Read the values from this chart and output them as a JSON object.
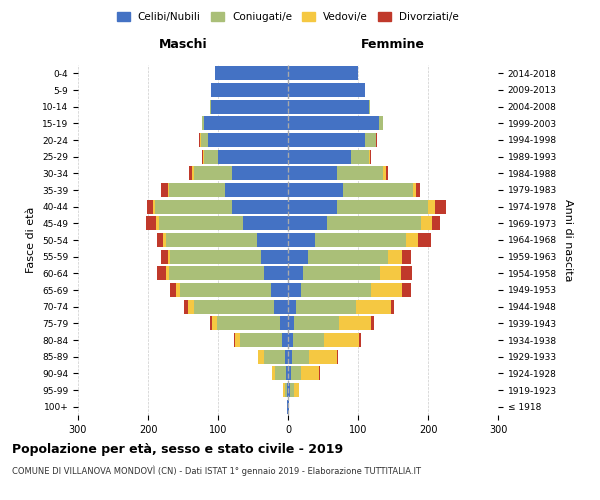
{
  "age_groups": [
    "100+",
    "95-99",
    "90-94",
    "85-89",
    "80-84",
    "75-79",
    "70-74",
    "65-69",
    "60-64",
    "55-59",
    "50-54",
    "45-49",
    "40-44",
    "35-39",
    "30-34",
    "25-29",
    "20-24",
    "15-19",
    "10-14",
    "5-9",
    "0-4"
  ],
  "birth_years": [
    "≤ 1918",
    "1919-1923",
    "1924-1928",
    "1929-1933",
    "1934-1938",
    "1939-1943",
    "1944-1948",
    "1949-1953",
    "1954-1958",
    "1959-1963",
    "1964-1968",
    "1969-1973",
    "1974-1978",
    "1979-1983",
    "1984-1988",
    "1989-1993",
    "1994-1998",
    "1999-2003",
    "2004-2008",
    "2009-2013",
    "2014-2018"
  ],
  "colors": {
    "celibi_nubili": "#4472C4",
    "coniugati": "#AABF78",
    "vedovi": "#F5C842",
    "divorziati": "#C0392B"
  },
  "male_celibi": [
    1,
    2,
    3,
    5,
    8,
    12,
    20,
    25,
    35,
    38,
    45,
    65,
    80,
    90,
    80,
    100,
    115,
    120,
    110,
    110,
    105
  ],
  "male_coniugati": [
    0,
    3,
    15,
    30,
    60,
    90,
    115,
    130,
    135,
    130,
    130,
    120,
    110,
    80,
    55,
    20,
    10,
    3,
    2,
    0,
    0
  ],
  "male_vedovi": [
    0,
    2,
    5,
    8,
    8,
    7,
    8,
    5,
    5,
    4,
    4,
    3,
    3,
    2,
    2,
    1,
    1,
    0,
    0,
    0,
    0
  ],
  "male_divorziati": [
    0,
    0,
    0,
    0,
    1,
    3,
    5,
    8,
    12,
    10,
    8,
    15,
    8,
    10,
    5,
    2,
    1,
    0,
    0,
    0,
    0
  ],
  "female_nubili": [
    1,
    3,
    4,
    5,
    7,
    8,
    12,
    18,
    22,
    28,
    38,
    55,
    70,
    78,
    70,
    90,
    110,
    130,
    115,
    110,
    100
  ],
  "female_coniugate": [
    0,
    5,
    15,
    25,
    45,
    65,
    85,
    100,
    110,
    115,
    130,
    135,
    130,
    100,
    65,
    25,
    15,
    5,
    2,
    0,
    0
  ],
  "female_vedove": [
    1,
    8,
    25,
    40,
    50,
    45,
    50,
    45,
    30,
    20,
    18,
    15,
    10,
    5,
    5,
    2,
    1,
    0,
    0,
    0,
    0
  ],
  "female_divorziate": [
    0,
    0,
    1,
    1,
    2,
    5,
    5,
    12,
    15,
    12,
    18,
    12,
    15,
    5,
    3,
    2,
    1,
    0,
    0,
    0,
    0
  ],
  "xlim": 300,
  "title": "Popolazione per età, sesso e stato civile - 2019",
  "subtitle": "COMUNE DI VILLANOVA MONDOVÌ (CN) - Dati ISTAT 1° gennaio 2019 - Elaborazione TUTTITALIA.IT",
  "ylabel_left": "Fasce di età",
  "ylabel_right": "Anni di nascita",
  "header_left": "Maschi",
  "header_right": "Femmine",
  "legend_labels": [
    "Celibi/Nubili",
    "Coniugati/e",
    "Vedovi/e",
    "Divorziati/e"
  ],
  "xtick_labels": [
    "300",
    "200",
    "100",
    "0",
    "100",
    "200",
    "300"
  ],
  "xtick_vals": [
    -300,
    -200,
    -100,
    0,
    100,
    200,
    300
  ]
}
